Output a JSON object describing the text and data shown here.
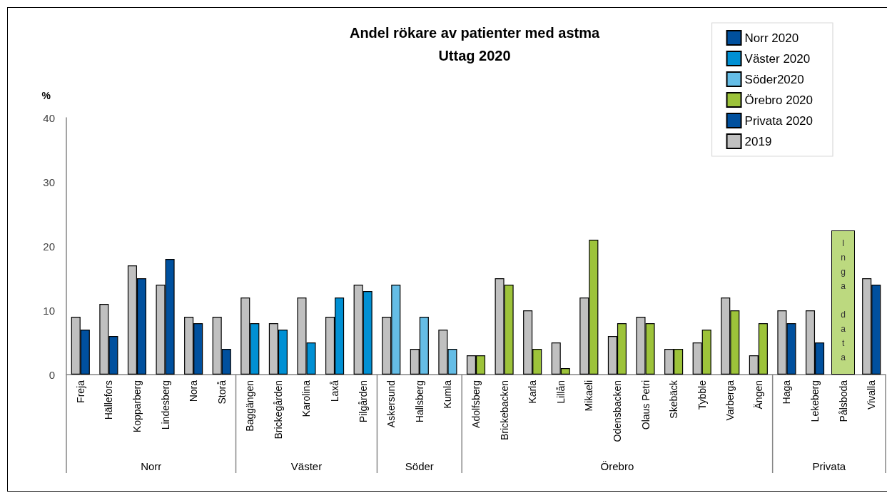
{
  "chart_data": {
    "type": "bar",
    "title": "Andel rökare av patienter med astma",
    "subtitle": "Uttag 2020",
    "ylabel": "%",
    "categories": [
      "Freja",
      "Hällefors",
      "Kopparberg",
      "Lindesberg",
      "Nora",
      "Storå",
      "Baggängen",
      "Brickegården",
      "Karolina",
      "Laxå",
      "Pilgården",
      "Askersund",
      "Hallsberg",
      "Kumla",
      "Adolfsberg",
      "Brickebacken",
      "Karla",
      "Lillån",
      "Mikaeli",
      "Odensbacken",
      "Olaus Petri",
      "Skebäck",
      "Tybble",
      "Varberga",
      "Ängen",
      "Haga",
      "Lekeberg",
      "Pålsboda",
      "Vivalla"
    ],
    "series": [
      {
        "name": "Norr 2020",
        "color": "#00509e",
        "values": [
          7,
          6,
          15,
          18,
          8,
          4,
          null,
          null,
          null,
          null,
          null,
          null,
          null,
          null,
          null,
          null,
          null,
          null,
          null,
          null,
          null,
          null,
          null,
          null,
          null,
          null,
          null,
          null,
          null
        ]
      },
      {
        "name": "Väster 2020",
        "color": "#0090d4",
        "values": [
          null,
          null,
          null,
          null,
          null,
          null,
          8,
          7,
          5,
          12,
          13,
          null,
          null,
          null,
          null,
          null,
          null,
          null,
          null,
          null,
          null,
          null,
          null,
          null,
          null,
          null,
          null,
          null,
          null
        ]
      },
      {
        "name": "Söder2020",
        "color": "#65bde6",
        "values": [
          null,
          null,
          null,
          null,
          null,
          null,
          null,
          null,
          null,
          null,
          null,
          14,
          9,
          4,
          null,
          null,
          null,
          null,
          null,
          null,
          null,
          null,
          null,
          null,
          null,
          null,
          null,
          null,
          null
        ]
      },
      {
        "name": "Örebro 2020",
        "color": "#9dc33a",
        "values": [
          null,
          null,
          null,
          null,
          null,
          null,
          null,
          null,
          null,
          null,
          null,
          null,
          null,
          null,
          3,
          14,
          4,
          1,
          21,
          8,
          8,
          4,
          7,
          10,
          8,
          null,
          null,
          null,
          null
        ]
      },
      {
        "name": "Privata 2020",
        "color": "#00509e",
        "values": [
          null,
          null,
          null,
          null,
          null,
          null,
          null,
          null,
          null,
          null,
          null,
          null,
          null,
          null,
          null,
          null,
          null,
          null,
          null,
          null,
          null,
          null,
          null,
          null,
          null,
          8,
          5,
          null,
          14
        ]
      },
      {
        "name": "2019",
        "color": "#c0c0c0",
        "values": [
          9,
          11,
          17,
          14,
          9,
          9,
          12,
          8,
          12,
          9,
          14,
          9,
          4,
          7,
          3,
          15,
          10,
          5,
          12,
          6,
          9,
          4,
          5,
          12,
          3,
          10,
          10,
          null,
          15
        ]
      }
    ],
    "ylim": [
      0,
      40
    ],
    "yticks": [
      0,
      10,
      20,
      30,
      40
    ],
    "grid": false,
    "legend": "top right",
    "annotations": [
      "Norr",
      "Väster",
      "Söder",
      "Örebro",
      "Privata",
      "Inga data"
    ]
  }
}
